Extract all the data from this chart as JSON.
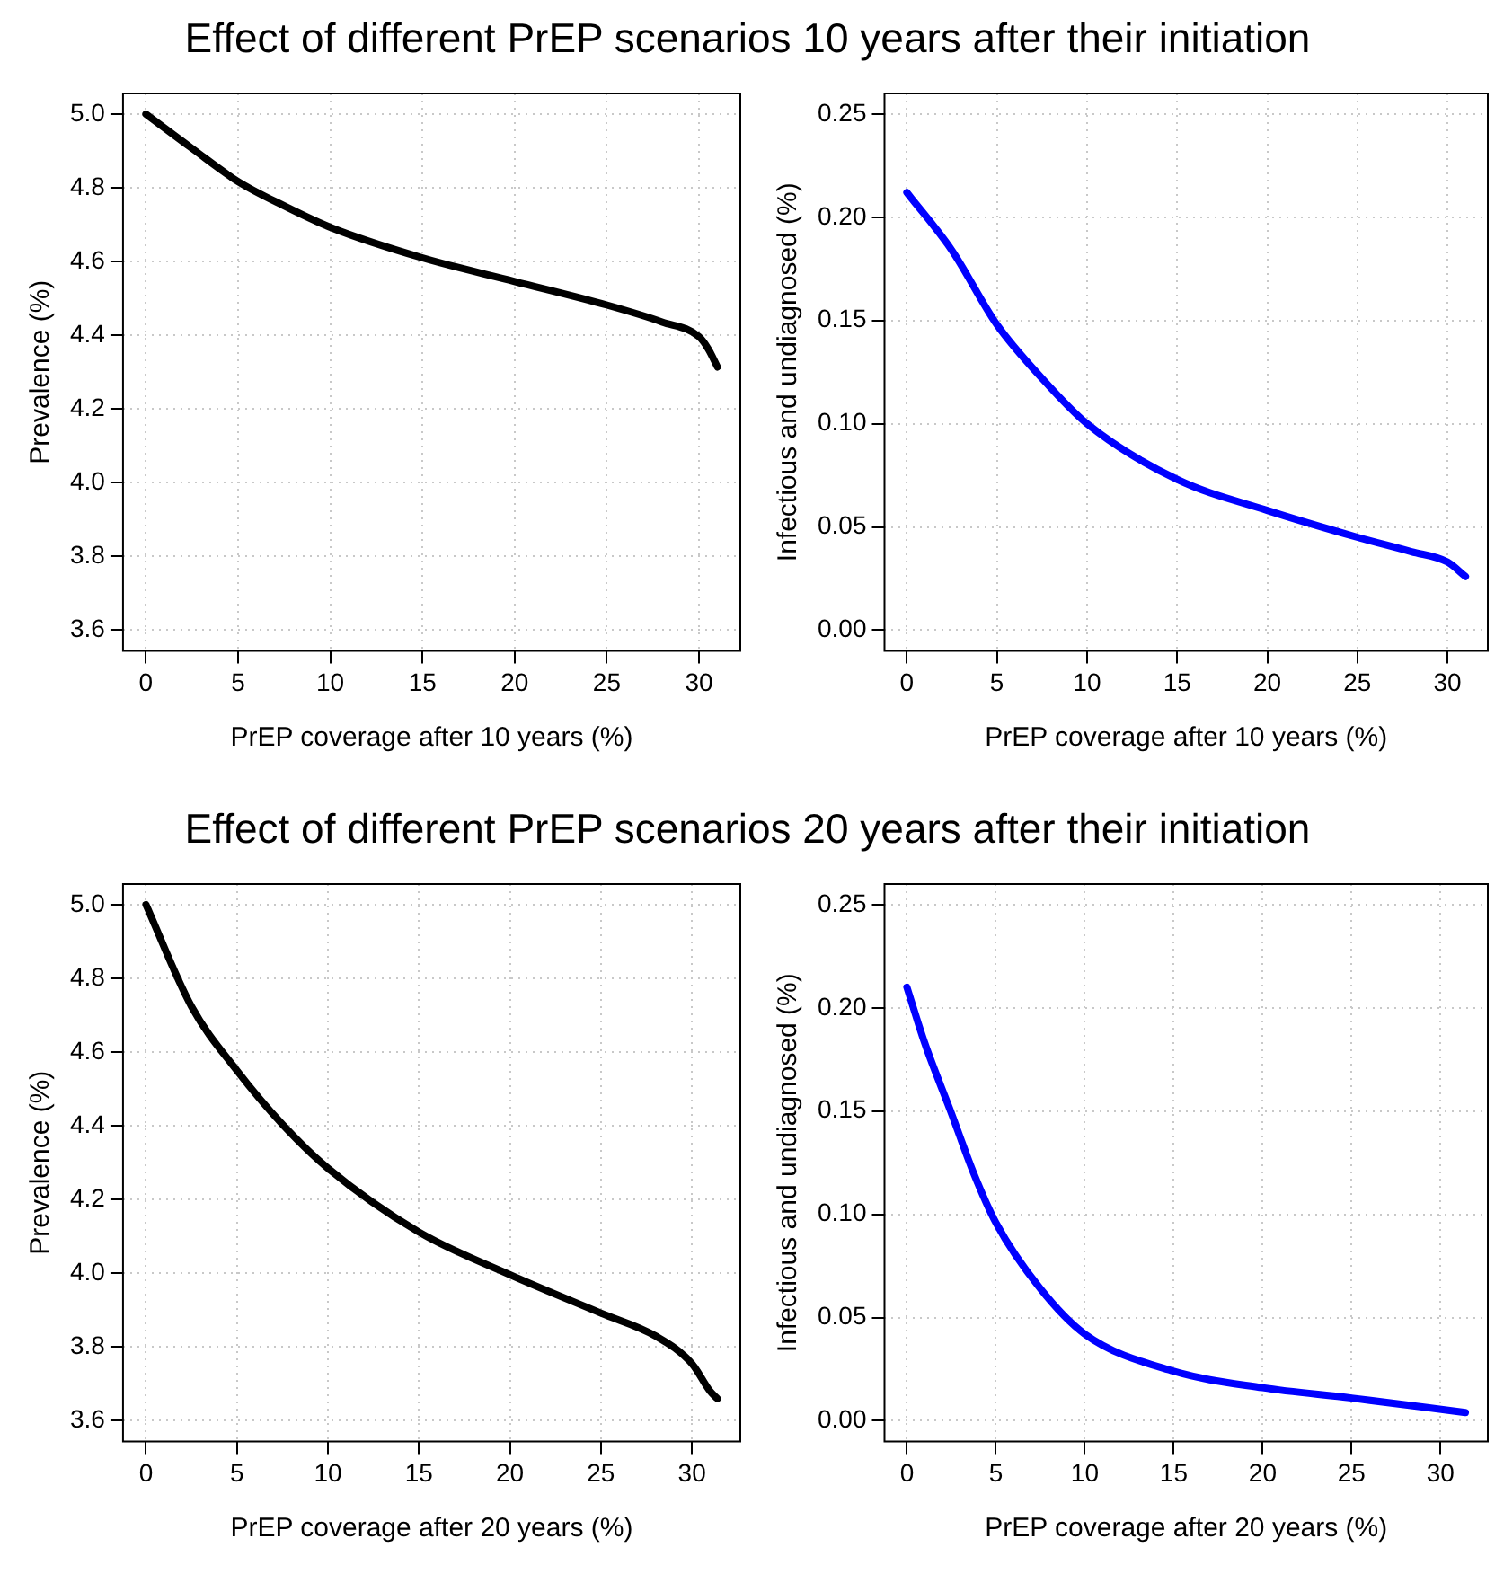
{
  "chart_data": [
    {
      "type": "line",
      "title": "Effect of different PrEP scenarios 10 years after their initiation",
      "xlabel": "PrEP coverage after 10 years (%)",
      "ylabel": "Prevalence (%)",
      "xlim": [
        -1.24,
        32.24
      ],
      "xticks": [
        0,
        5,
        10,
        15,
        20,
        25,
        30
      ],
      "ylim": [
        3.544,
        5.056
      ],
      "yticks": [
        3.6,
        3.8,
        {
          "value": 4,
          "label": "4.0"
        },
        4.2,
        4.4,
        4.6,
        4.8,
        {
          "value": 5,
          "label": "5.0"
        }
      ],
      "grid": true,
      "marker": "none",
      "line_style": "solid",
      "series": [
        {
          "color": "#000000",
          "x": [
            0,
            2.5,
            5,
            7.5,
            10,
            15,
            20,
            25,
            28,
            30,
            30.5,
            31
          ],
          "values": [
            5.0,
            4.907,
            4.817,
            4.751,
            4.693,
            4.61,
            4.546,
            4.482,
            4.436,
            4.396,
            4.363,
            4.314
          ]
        }
      ]
    },
    {
      "type": "line",
      "xlabel": "PrEP coverage after 10 years (%)",
      "ylabel": "Infectious and undiagnosed (%)",
      "xlim": [
        -1.24,
        32.24
      ],
      "xticks": [
        0,
        5,
        10,
        15,
        20,
        25,
        30
      ],
      "ylim": [
        -0.01,
        0.26
      ],
      "yticks": [
        {
          "value": 0,
          "label": "0.00"
        },
        0.05,
        {
          "value": 0.1,
          "label": "0.10"
        },
        0.15,
        {
          "value": 0.2,
          "label": "0.20"
        },
        0.25
      ],
      "grid": true,
      "marker": "none",
      "line_style": "solid",
      "series": [
        {
          "color": "#0000ff",
          "x": [
            0,
            2.5,
            5,
            7.5,
            10,
            15,
            20,
            25,
            28,
            30,
            31
          ],
          "values": [
            0.212,
            0.184,
            0.148,
            0.122,
            0.1,
            0.073,
            0.058,
            0.045,
            0.038,
            0.033,
            0.026
          ]
        }
      ]
    },
    {
      "type": "line",
      "title": "Effect of different PrEP scenarios 20 years after their initiation",
      "xlabel": "PrEP coverage after 20 years (%)",
      "ylabel": "Prevalence (%)",
      "xlim": [
        -1.26,
        32.66
      ],
      "xticks": [
        0,
        5,
        10,
        15,
        20,
        25,
        30
      ],
      "ylim": [
        3.544,
        5.056
      ],
      "yticks": [
        3.6,
        3.8,
        {
          "value": 4,
          "label": "4.0"
        },
        4.2,
        4.4,
        4.6,
        4.8,
        {
          "value": 5,
          "label": "5.0"
        }
      ],
      "grid": true,
      "marker": "none",
      "line_style": "solid",
      "series": [
        {
          "color": "#000000",
          "x": [
            0,
            2.5,
            5,
            7.5,
            10,
            15,
            20,
            25,
            28,
            30,
            31,
            31.4
          ],
          "values": [
            5.0,
            4.724,
            4.55,
            4.404,
            4.285,
            4.112,
            3.996,
            3.892,
            3.83,
            3.755,
            3.68,
            3.66
          ]
        }
      ]
    },
    {
      "type": "line",
      "xlabel": "PrEP coverage after 20 years (%)",
      "ylabel": "Infectious and undiagnosed (%)",
      "xlim": [
        -1.26,
        32.66
      ],
      "xticks": [
        0,
        5,
        10,
        15,
        20,
        25,
        30
      ],
      "ylim": [
        -0.01,
        0.26
      ],
      "yticks": [
        {
          "value": 0,
          "label": "0.00"
        },
        0.05,
        {
          "value": 0.1,
          "label": "0.10"
        },
        0.15,
        {
          "value": 0.2,
          "label": "0.20"
        },
        0.25
      ],
      "grid": true,
      "marker": "none",
      "line_style": "solid",
      "series": [
        {
          "color": "#0000ff",
          "x": [
            0,
            1,
            2.5,
            3.75,
            5,
            7.5,
            10,
            15,
            20,
            25,
            31.4
          ],
          "values": [
            0.21,
            0.183,
            0.149,
            0.12,
            0.096,
            0.064,
            0.042,
            0.024,
            0.016,
            0.011,
            0.004
          ]
        }
      ]
    }
  ]
}
